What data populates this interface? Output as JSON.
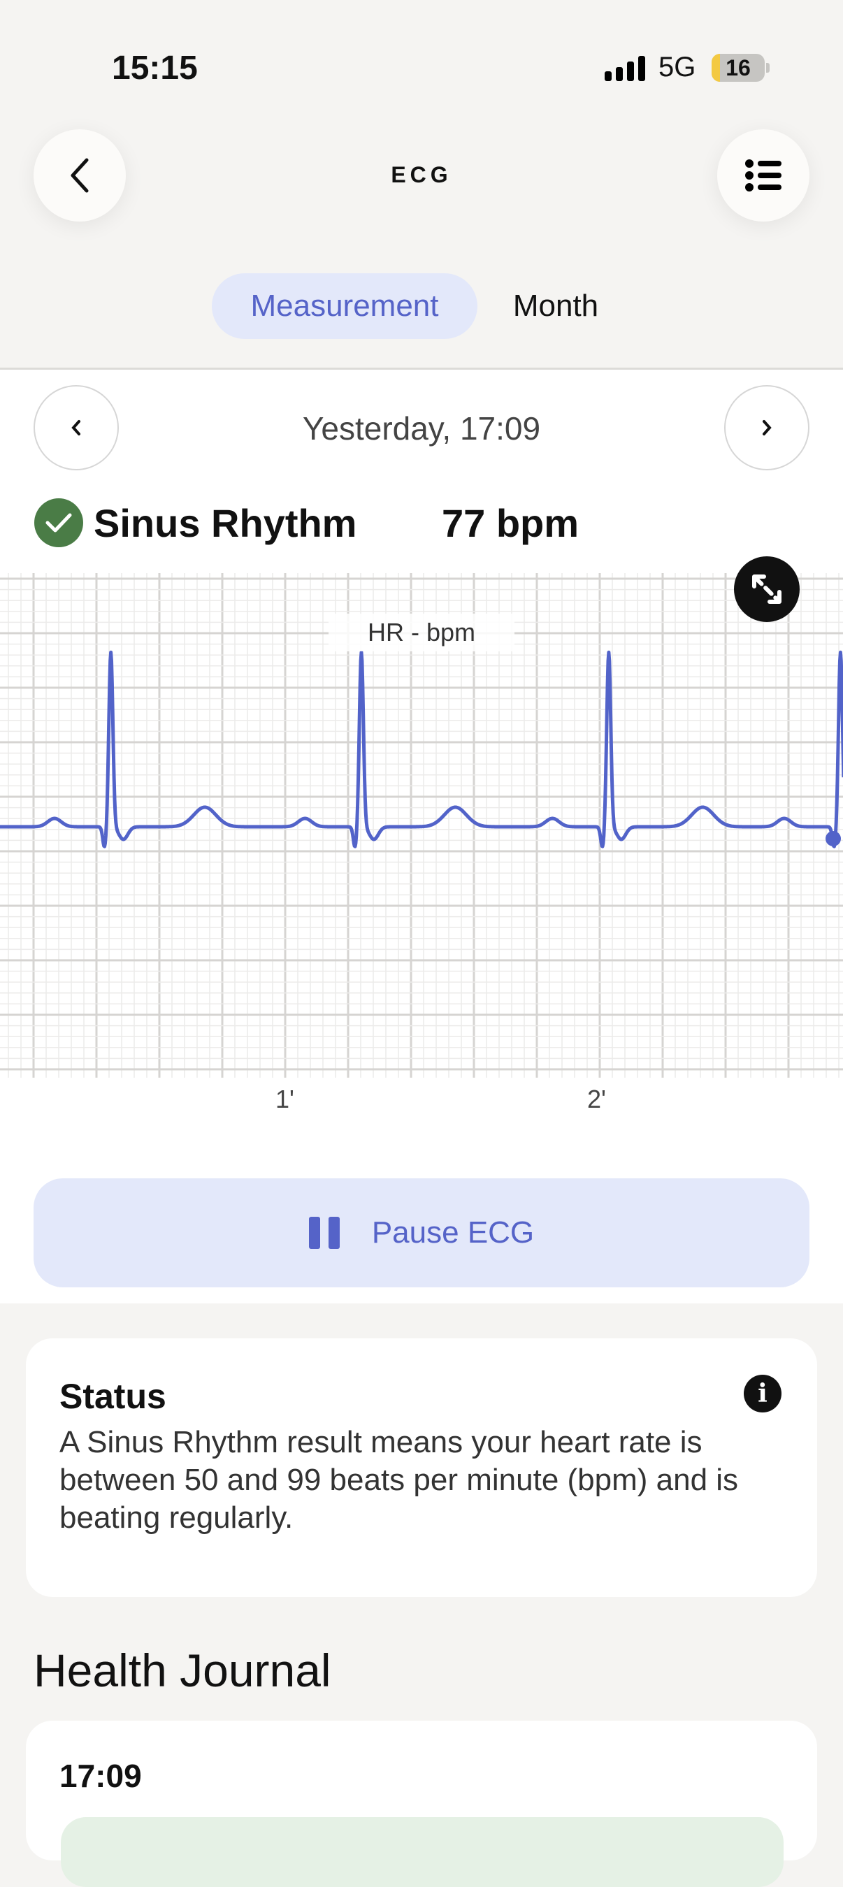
{
  "status_bar": {
    "time": "15:15",
    "network": "5G",
    "battery": "16",
    "battery_level_percent": 16
  },
  "header": {
    "title": "ECG",
    "back_icon": "chevron-left-icon",
    "menu_icon": "list-icon"
  },
  "tabs": [
    {
      "label": "Measurement",
      "active": true
    },
    {
      "label": "Month",
      "active": false
    }
  ],
  "record": {
    "date": "Yesterday, 17:09",
    "rhythm": "Sinus Rhythm",
    "heart_rate": "77 bpm",
    "status_color": "#4a7c46"
  },
  "chart_data": {
    "type": "line",
    "title": "HR - bpm",
    "x_tick_labels": [
      "1'",
      "2'"
    ],
    "x_tick_values": [
      1,
      2
    ],
    "xlim": [
      0,
      2.79
    ],
    "series": [
      {
        "r_peaks_s": [
          0.45,
          1.25,
          2.04,
          2.78
        ]
      }
    ],
    "grid": true,
    "line_color": "#5263c9"
  },
  "pause_button": {
    "label": "Pause ECG",
    "icon": "pause-icon"
  },
  "status_card": {
    "title": "Status",
    "body": "A Sinus Rhythm result means your heart rate is between 50 and 99 beats per minute (bpm) and is beating regularly.",
    "icon": "info-icon"
  },
  "journal": {
    "title": "Health Journal",
    "entries": [
      {
        "time": "17:09"
      }
    ]
  }
}
